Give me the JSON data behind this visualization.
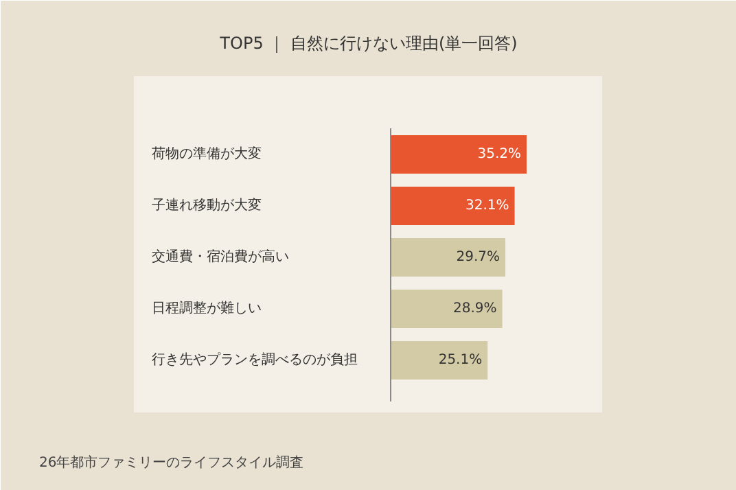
{
  "chart_data": {
    "type": "bar",
    "orientation": "horizontal",
    "title": "TOP5 ｜ 自然に行けない理由(単一回答)",
    "categories": [
      "荷物の準備が大変",
      "子連れ移動が大変",
      "交通費・宿泊費が高い",
      "日程調整が難しい",
      "行き先やプランを調べるのが負担"
    ],
    "values": [
      35.2,
      32.1,
      29.7,
      28.9,
      25.1
    ],
    "colors": [
      "#e8562f",
      "#e8562f",
      "#d3caa6",
      "#d3caa6",
      "#d3caa6"
    ],
    "value_labels": [
      "35.2%",
      "32.1%",
      "29.7%",
      "28.9%",
      "25.1%"
    ],
    "annotations": [
      "26年都市ファミリーのライフスタイル調査"
    ]
  }
}
